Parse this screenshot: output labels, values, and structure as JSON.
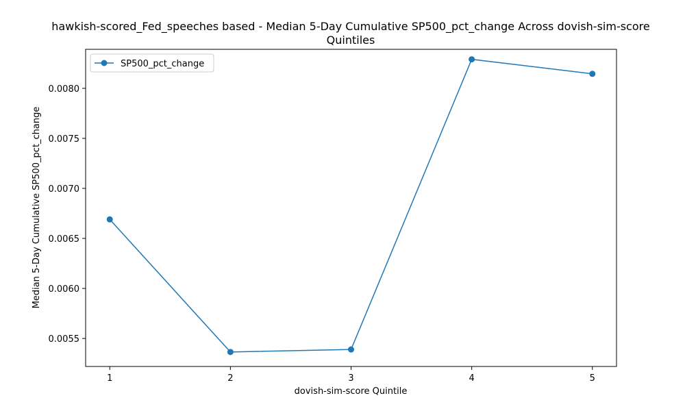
{
  "chart_data": {
    "type": "line",
    "title_line1": "hawkish-scored_Fed_speeches based - Median 5-Day Cumulative SP500_pct_change Across dovish-sim-score",
    "title_line2": "Quintiles",
    "xlabel": "dovish-sim-score Quintile",
    "ylabel": "Median 5-Day Cumulative SP500_pct_change",
    "x": [
      1,
      2,
      3,
      4,
      5
    ],
    "x_tick_labels": [
      "1",
      "2",
      "3",
      "4",
      "5"
    ],
    "xlim": [
      0.8,
      5.2
    ],
    "ylim": [
      0.00522,
      0.00839
    ],
    "y_ticks": [
      0.0055,
      0.006,
      0.0065,
      0.007,
      0.0075,
      0.008
    ],
    "y_tick_labels": [
      "0.0055",
      "0.0060",
      "0.0065",
      "0.0070",
      "0.0075",
      "0.0080"
    ],
    "series": [
      {
        "name": "SP500_pct_change",
        "color": "#1f77b4",
        "values": [
          0.00669,
          0.005365,
          0.00539,
          0.00829,
          0.008145
        ]
      }
    ],
    "legend_position": "upper-left",
    "grid": false
  }
}
